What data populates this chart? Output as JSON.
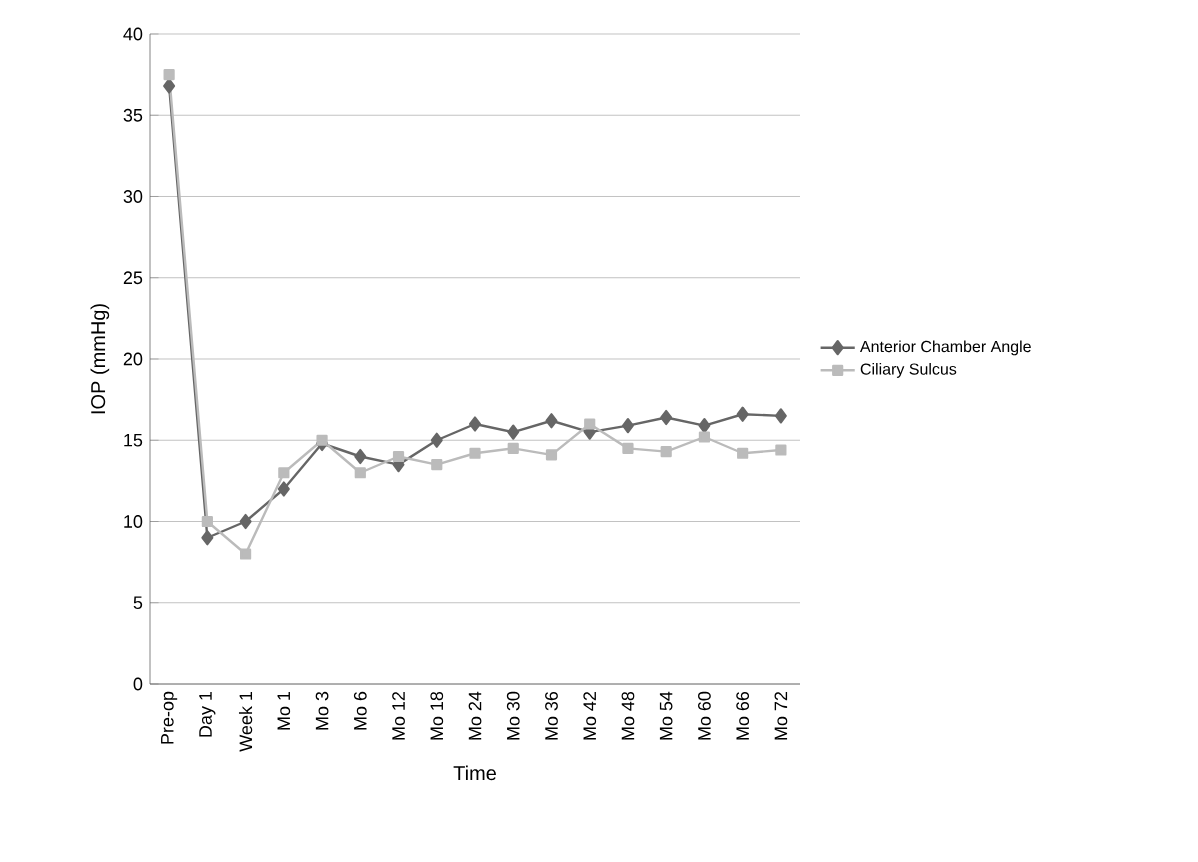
{
  "chart_data": {
    "type": "line",
    "xlabel": "Time",
    "ylabel": "IOP (mmHg)",
    "categories": [
      "Pre-op",
      "Day 1",
      "Week 1",
      "Mo 1",
      "Mo 3",
      "Mo 6",
      "Mo 12",
      "Mo 18",
      "Mo 24",
      "Mo 30",
      "Mo 36",
      "Mo 42",
      "Mo 48",
      "Mo 54",
      "Mo 60",
      "Mo 66",
      "Mo 72"
    ],
    "series": [
      {
        "name": "Anterior Chamber Angle",
        "color": "#666666",
        "marker": "diamond",
        "values": [
          36.8,
          9,
          10,
          12,
          14.8,
          14,
          13.5,
          15,
          16,
          15.5,
          16.2,
          15.5,
          15.9,
          16.4,
          15.9,
          16.6,
          16.5
        ]
      },
      {
        "name": "Ciliary Sulcus",
        "color": "#bbbbbb",
        "marker": "square",
        "values": [
          37.5,
          10,
          8,
          13,
          15,
          13,
          14,
          13.5,
          14.2,
          14.5,
          14.1,
          16,
          14.5,
          14.3,
          15.2,
          14.2,
          14.4
        ]
      }
    ],
    "ylim": [
      0,
      40
    ],
    "yticks": [
      0,
      5,
      10,
      15,
      20,
      25,
      30,
      35,
      40
    ],
    "grid": "y",
    "legend": "right"
  }
}
